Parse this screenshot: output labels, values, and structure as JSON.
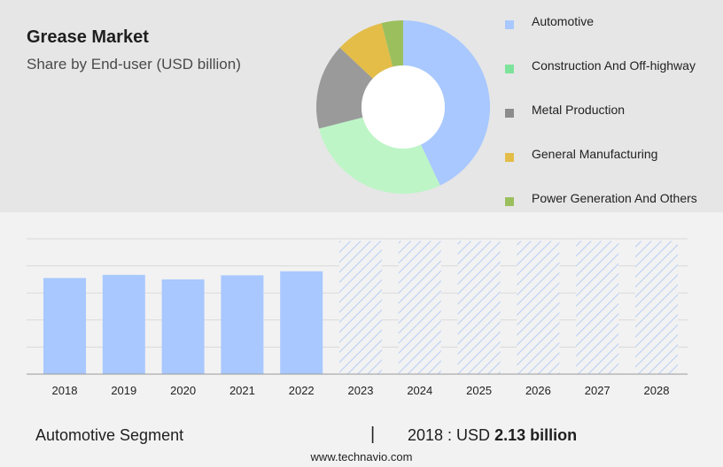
{
  "title": "Grease Market",
  "subtitle": "Share by End-user (USD billion)",
  "legend": [
    {
      "label": "Automotive",
      "color": "#a8c8ff"
    },
    {
      "label": "Construction And Off-highway",
      "color": "#7ee39a"
    },
    {
      "label": "Metal Production",
      "color": "#8c8c8c"
    },
    {
      "label": "General Manufacturing",
      "color": "#e3bd48"
    },
    {
      "label": "Power Generation And Others",
      "color": "#9cbf5e"
    }
  ],
  "chart_data": [
    {
      "type": "pie",
      "donut": true,
      "categories": [
        "Automotive",
        "Construction And Off-highway",
        "Metal Production",
        "General Manufacturing",
        "Power Generation And Others"
      ],
      "values": [
        43,
        28,
        16,
        9,
        4
      ],
      "colors": [
        "#a8c8ff",
        "#bdf5c7",
        "#9a9a9a",
        "#e3bd48",
        "#9cbf5e"
      ],
      "legend_position": "right"
    },
    {
      "type": "bar",
      "categories": [
        "2018",
        "2019",
        "2020",
        "2021",
        "2022",
        "2023",
        "2024",
        "2025",
        "2026",
        "2027",
        "2028"
      ],
      "values": [
        2.13,
        2.2,
        2.1,
        2.19,
        2.28,
        null,
        null,
        null,
        null,
        null,
        null
      ],
      "forecast_categories": [
        "2023",
        "2024",
        "2025",
        "2026",
        "2027",
        "2028"
      ],
      "forecast_pattern": "diagonal-hatch",
      "ylim": [
        0,
        3
      ],
      "grid": true,
      "color": "#a8c8ff"
    }
  ],
  "footer": {
    "segment": "Automotive Segment",
    "divider": "|",
    "stat_prefix": "2018 : USD",
    "stat_value": "2.13 billion",
    "url": "www.technavio.com"
  }
}
